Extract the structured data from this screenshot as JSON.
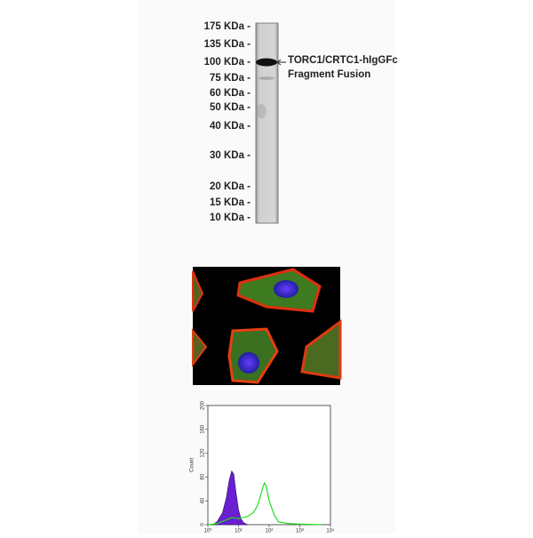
{
  "blot": {
    "markers": [
      {
        "label": "175 KDa -",
        "kda": 175
      },
      {
        "label": "135 KDa -",
        "kda": 135
      },
      {
        "label": "100 KDa -",
        "kda": 100
      },
      {
        "label": "75 KDa -",
        "kda": 75
      },
      {
        "label": "60 KDa -",
        "kda": 60
      },
      {
        "label": "50 KDa -",
        "kda": 50
      },
      {
        "label": "40 KDa -",
        "kda": 40
      },
      {
        "label": "30 KDa -",
        "kda": 30
      },
      {
        "label": "20 KDa -",
        "kda": 20
      },
      {
        "label": "15 KDa -",
        "kda": 15
      },
      {
        "label": "10 KDa -",
        "kda": 10
      }
    ],
    "annotation": [
      "TORC1/CRTC1-hIgGFc",
      "Fragment Fusion"
    ]
  },
  "histogram": {
    "type": "line",
    "y_label": "Count",
    "ylim": [
      0,
      200
    ],
    "yticks": [
      0,
      40,
      80,
      120,
      160,
      200
    ],
    "xlim": [
      1,
      10000
    ],
    "log_x": true,
    "xticks": [
      {
        "value": 1,
        "label": "10⁰"
      },
      {
        "value": 10,
        "label": "10¹"
      },
      {
        "value": 100,
        "label": "10²"
      },
      {
        "value": 1000,
        "label": "10³"
      },
      {
        "value": 10000,
        "label": "10⁴"
      }
    ],
    "series": [
      {
        "color": "#6a1fd0",
        "filled": true,
        "x": [
          1.5,
          2,
          3,
          4,
          5,
          6,
          7,
          8,
          10,
          12,
          15,
          20
        ],
        "values": [
          0,
          5,
          20,
          45,
          75,
          90,
          85,
          60,
          25,
          10,
          3,
          0
        ]
      },
      {
        "color": "#22dd22",
        "filled": false,
        "x": [
          1,
          2,
          4,
          6,
          10,
          20,
          30,
          40,
          50,
          60,
          70,
          80,
          100,
          150,
          200,
          400,
          1000,
          5000
        ],
        "values": [
          0,
          2,
          8,
          12,
          10,
          14,
          20,
          30,
          45,
          60,
          70,
          65,
          40,
          15,
          5,
          2,
          1,
          0
        ]
      }
    ]
  }
}
